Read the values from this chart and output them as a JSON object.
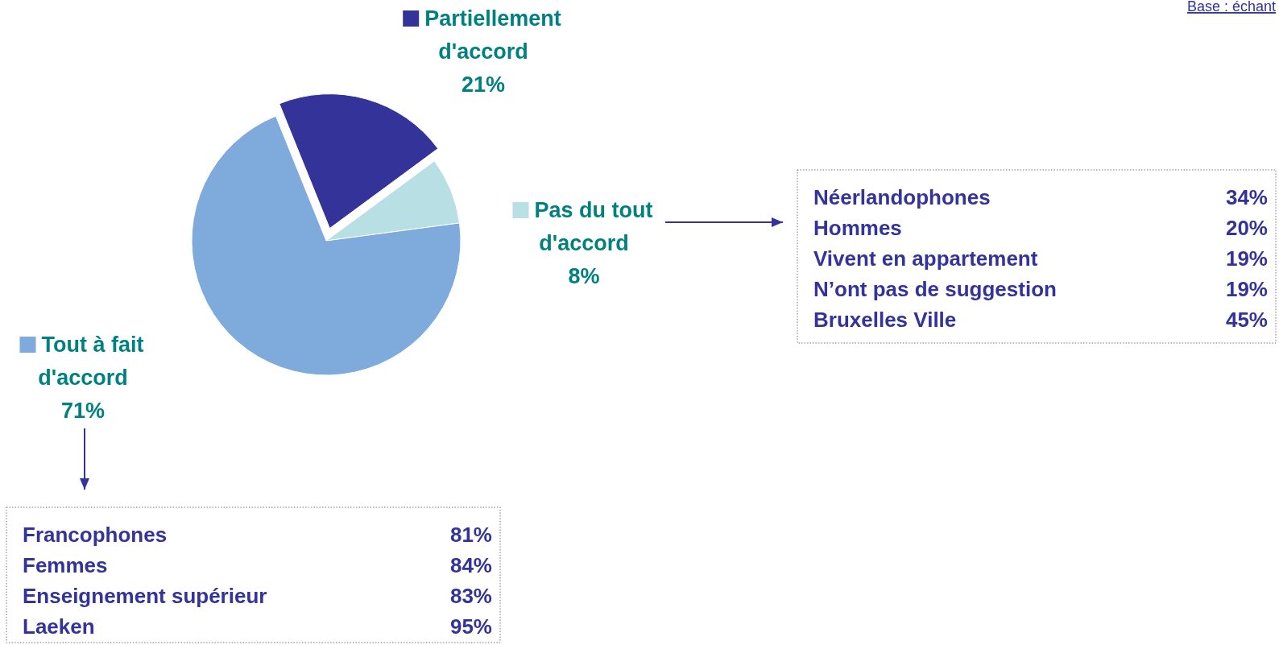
{
  "chart_data": {
    "type": "pie",
    "categories": [
      "Partiellement d'accord",
      "Pas du tout d'accord",
      "Tout à fait d'accord"
    ],
    "values": [
      21,
      8,
      71
    ],
    "colors": [
      "#333399",
      "#b8dfe3",
      "#7faadc"
    ],
    "value_labels": [
      "21%",
      "8%",
      "71%"
    ],
    "legend": "right",
    "annotations": [
      "Base :    échant",
      "Néerlandophones",
      "34%",
      "Hommes",
      "20%",
      "Vivent en appartement",
      "19%",
      "N’ont pas de suggestion",
      "19%",
      "Bruxelles Ville",
      "45%",
      "Francophones",
      "81%",
      "Femmes",
      "84%",
      "Enseignement supérieur",
      "83%",
      "Laeken",
      "95%"
    ]
  }
}
